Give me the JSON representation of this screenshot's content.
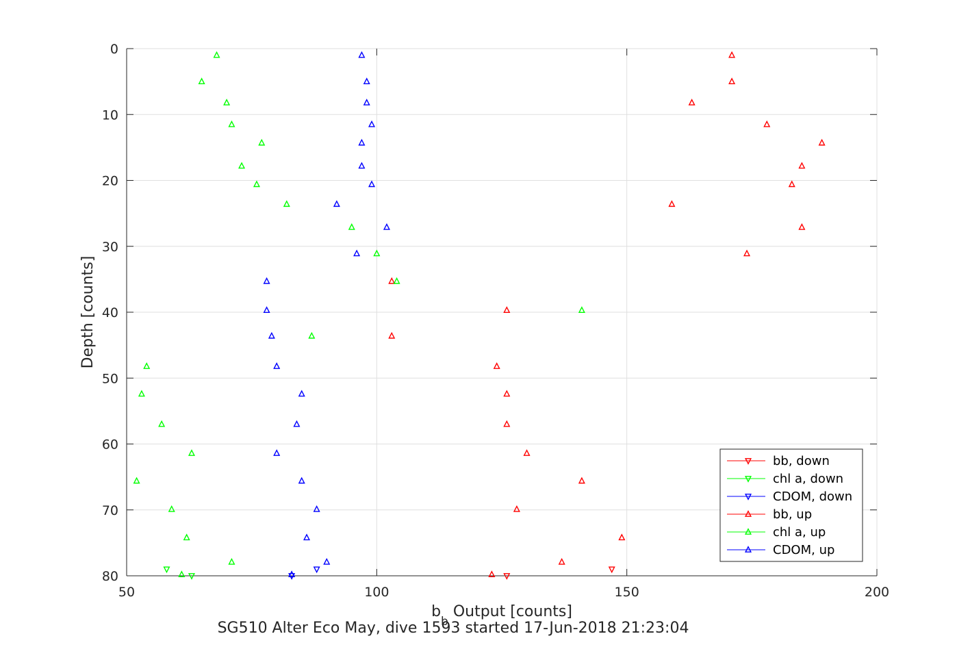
{
  "chart_data": {
    "type": "scatter",
    "xlabel_main": "b",
    "xlabel_sub": "b",
    "xlabel_rest": " Output [counts]",
    "ylabel": "Depth [counts]",
    "caption": "SG510 Alter Eco May, dive 1593 started 17-Jun-2018 21:23:04",
    "xlim": [
      50,
      200
    ],
    "ylim": [
      0,
      80
    ],
    "y_reversed": true,
    "grid": true,
    "xticks": [
      "50",
      "100",
      "150",
      "200"
    ],
    "yticks": [
      "0",
      "10",
      "20",
      "30",
      "40",
      "50",
      "60",
      "70",
      "80"
    ],
    "legend_position": "bottom-right",
    "series": [
      {
        "name": "bb, down",
        "color": "#ff0000",
        "marker": "down",
        "x": [
          126,
          147
        ],
        "y": [
          80,
          79
        ]
      },
      {
        "name": "chl a, down",
        "color": "#00ff00",
        "marker": "down",
        "x": [
          58,
          63
        ],
        "y": [
          79,
          80
        ]
      },
      {
        "name": "CDOM, down",
        "color": "#0000ff",
        "marker": "down",
        "x": [
          83,
          88
        ],
        "y": [
          80,
          79
        ]
      },
      {
        "name": "bb, up",
        "color": "#ff0000",
        "marker": "up",
        "x": [
          171,
          171,
          163,
          178,
          189,
          185,
          183,
          159,
          185,
          174,
          103,
          126,
          103,
          124,
          126,
          126,
          130,
          141,
          128,
          149,
          137,
          123
        ],
        "y": [
          1,
          5,
          8.2,
          11.5,
          14.3,
          17.8,
          20.6,
          23.6,
          27.1,
          31.1,
          35.3,
          39.7,
          43.6,
          48.2,
          52.4,
          57,
          61.4,
          65.6,
          69.9,
          74.2,
          77.9,
          79.8
        ]
      },
      {
        "name": "chl a, up",
        "color": "#00ff00",
        "marker": "up",
        "x": [
          68,
          65,
          70,
          71,
          77,
          73,
          76,
          82,
          95,
          100,
          104,
          141,
          87,
          54,
          53,
          57,
          63,
          52,
          59,
          62,
          71,
          61
        ],
        "y": [
          1,
          5,
          8.2,
          11.5,
          14.3,
          17.8,
          20.6,
          23.6,
          27.1,
          31.1,
          35.3,
          39.7,
          43.6,
          48.2,
          52.4,
          57,
          61.4,
          65.6,
          69.9,
          74.2,
          77.9,
          79.8
        ]
      },
      {
        "name": "CDOM, up",
        "color": "#0000ff",
        "marker": "up",
        "x": [
          97,
          98,
          98,
          99,
          97,
          97,
          99,
          92,
          102,
          96,
          78,
          78,
          79,
          80,
          85,
          84,
          80,
          85,
          88,
          86,
          90,
          83
        ],
        "y": [
          1,
          5,
          8.2,
          11.5,
          14.3,
          17.8,
          20.6,
          23.6,
          27.1,
          31.1,
          35.3,
          39.7,
          43.6,
          48.2,
          52.4,
          57,
          61.4,
          65.6,
          69.9,
          74.2,
          77.9,
          79.8
        ]
      }
    ]
  }
}
